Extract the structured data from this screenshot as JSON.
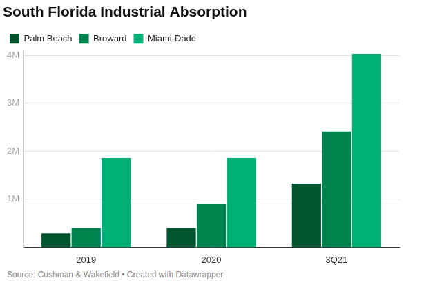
{
  "chart_data": {
    "type": "bar",
    "title": "South Florida Industrial Absorption",
    "source": "Source: Cushman & Wakefield • Created with Datawrapper",
    "categories": [
      "2019",
      "2020",
      "3Q21"
    ],
    "series": [
      {
        "name": "Palm Beach",
        "color": "#00552e",
        "values": [
          290000,
          400000,
          1330000
        ]
      },
      {
        "name": "Broward",
        "color": "#00844f",
        "values": [
          400000,
          900000,
          2410000
        ]
      },
      {
        "name": "Miami-Dade",
        "color": "#00b077",
        "values": [
          1860000,
          1860000,
          4030000
        ]
      }
    ],
    "ylim": [
      0,
      4100000
    ],
    "yticks": [
      {
        "value": 1000000,
        "label": "1M"
      },
      {
        "value": 2000000,
        "label": "2M"
      },
      {
        "value": 3000000,
        "label": "3M"
      },
      {
        "value": 4000000,
        "label": "4M"
      }
    ],
    "grid": true,
    "legend": "top-left"
  }
}
